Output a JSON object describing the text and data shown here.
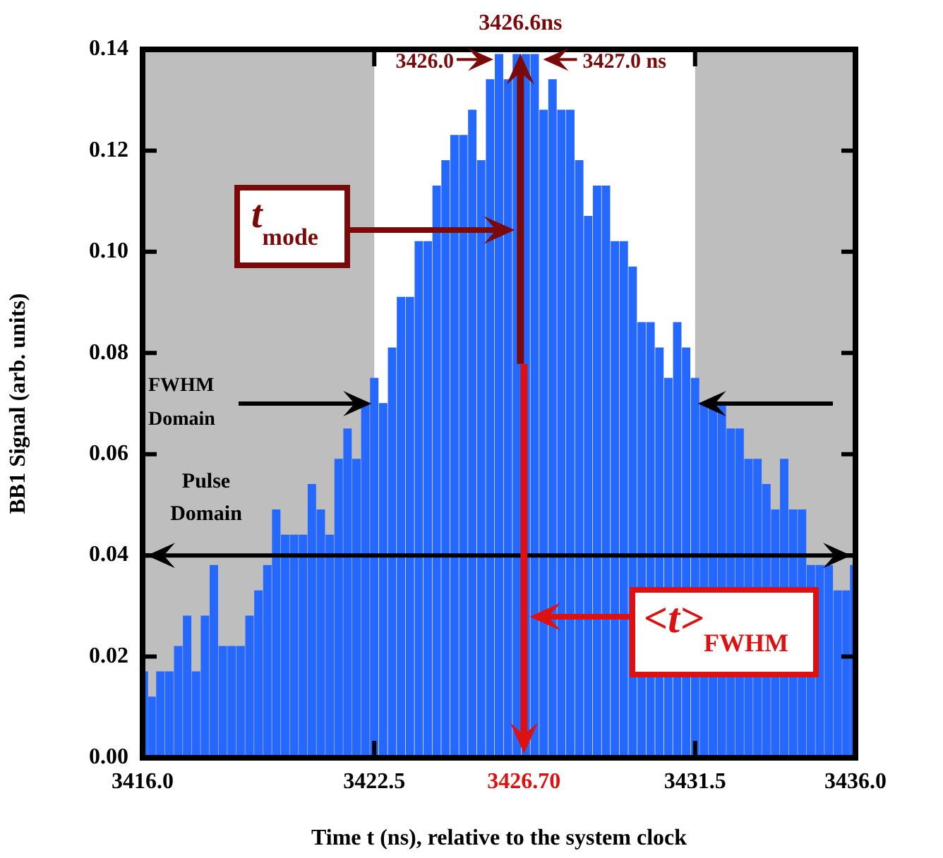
{
  "chart_data": {
    "type": "histogram",
    "xlabel": "Time t (ns), relative to the system clock",
    "ylabel": "BB1 Signal (arb. units)",
    "bins": [
      3416,
      3416.125,
      3416.375,
      3416.625,
      3416.875,
      3417.125,
      3417.375,
      3417.625,
      3417.875,
      3418.125,
      3418.375,
      3418.625,
      3418.875,
      3419.125,
      3419.375,
      3419.625,
      3419.875,
      3420.125,
      3420.375,
      3420.625,
      3420.875,
      3421.125,
      3421.375,
      3421.625,
      3421.875,
      3422.125,
      3422.375,
      3422.625,
      3422.875,
      3423.125,
      3423.375,
      3423.625,
      3423.875,
      3424.125,
      3424.375,
      3424.625,
      3424.875,
      3425.125,
      3425.375,
      3425.625,
      3425.875,
      3426.125,
      3426.375,
      3426.625,
      3426.875,
      3427.125,
      3427.375,
      3427.625,
      3427.875,
      3428.125,
      3428.375,
      3428.625,
      3428.875,
      3429.125,
      3429.375,
      3429.625,
      3429.875,
      3430.125,
      3430.375,
      3430.625,
      3430.875,
      3431.125,
      3431.375,
      3431.625,
      3431.875,
      3432.125,
      3432.375,
      3432.625,
      3432.875,
      3433.125,
      3433.375,
      3433.625,
      3433.875,
      3434.125,
      3434.375,
      3434.625,
      3434.875,
      3435.125,
      3435.375,
      3435.625,
      3435.875,
      3436
    ],
    "values": [
      0.017,
      0.012,
      0.017,
      0.017,
      0.022,
      0.028,
      0.017,
      0.028,
      0.038,
      0.022,
      0.022,
      0.022,
      0.028,
      0.033,
      0.038,
      0.049,
      0.044,
      0.044,
      0.044,
      0.054,
      0.049,
      0.044,
      0.059,
      0.065,
      0.059,
      0.07,
      0.075,
      0.07,
      0.081,
      0.091,
      0.091,
      0.102,
      0.102,
      0.113,
      0.118,
      0.123,
      0.123,
      0.128,
      0.118,
      0.134,
      0.139,
      0.134,
      0.139,
      0.139,
      0.139,
      0.128,
      0.134,
      0.128,
      0.128,
      0.118,
      0.107,
      0.113,
      0.113,
      0.102,
      0.102,
      0.097,
      0.086,
      0.086,
      0.081,
      0.075,
      0.086,
      0.081,
      0.075,
      0.07,
      0.07,
      0.07,
      0.065,
      0.065,
      0.059,
      0.059,
      0.054,
      0.049,
      0.059,
      0.049,
      0.049,
      0.038,
      0.038,
      0.038,
      0.033,
      0.033,
      0.038
    ],
    "color": "#2468ff",
    "xlim": [
      3416,
      3436
    ],
    "xticks": [
      {
        "value": 3416,
        "label": "3416.0"
      },
      {
        "value": 3422.5,
        "label": "3422.5"
      },
      {
        "value": 3426.7,
        "label": "3426.70"
      },
      {
        "value": 3431.5,
        "label": "3431.5"
      },
      {
        "value": 3436,
        "label": "3436.0"
      }
    ],
    "ylim": [
      0,
      0.14
    ],
    "yticks": [
      {
        "value": 0,
        "label": "0.00"
      },
      {
        "value": 0.02,
        "label": "0.02"
      },
      {
        "value": 0.04,
        "label": "0.04"
      },
      {
        "value": 0.06,
        "label": "0.06"
      },
      {
        "value": 0.08,
        "label": "0.08"
      },
      {
        "value": 0.1,
        "label": "0.10"
      },
      {
        "value": 0.12,
        "label": "0.12"
      },
      {
        "value": 0.14,
        "label": "0.14"
      }
    ],
    "bands": [
      {
        "axis": "x",
        "from": 3416,
        "to": 3422.5,
        "color": "#bebebe"
      },
      {
        "axis": "x",
        "from": 3431.5,
        "to": 3436,
        "color": "#bebebe"
      }
    ],
    "ref_lines": [
      {
        "axis": "y",
        "value": 0.04,
        "label": "Pulse Domain",
        "color": "#000000"
      },
      {
        "axis": "x",
        "value": 3426.6,
        "label": "t$_{mode}$",
        "color": "#7a0a0a"
      },
      {
        "axis": "x",
        "value": 3426.7,
        "label": "<t>$_{FWHM}$",
        "color": "#dd1111"
      }
    ],
    "annotations": [
      {
        "text": "3426.6ns",
        "x": 3426.6,
        "y": 0.14
      },
      {
        "text": "3426.0",
        "x": 3426.0,
        "y": 0.138
      },
      {
        "text": "3427.0 ns",
        "x": 3427.0,
        "y": 0.138
      },
      "FWHM Domain"
    ],
    "grid": false,
    "legend": false
  }
}
